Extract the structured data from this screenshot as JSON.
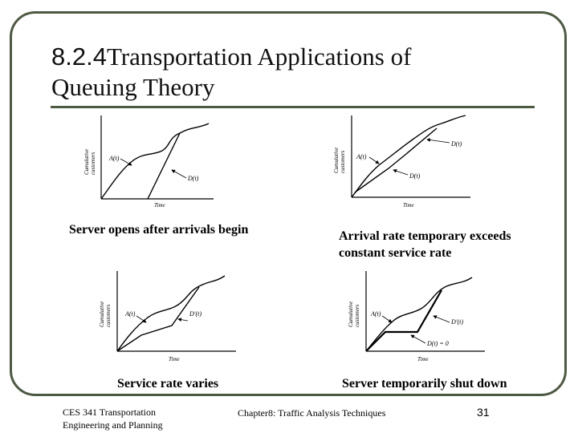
{
  "slide": {
    "title_number": "8.2.4",
    "title_text": "Transportation Applications of Queuing Theory",
    "page_number": "31",
    "footer_left": "CES 341 Transportation Engineering and Planning",
    "footer_center": "Chapter8: Traffic Analysis Techniques"
  },
  "figures": [
    {
      "caption": "Server opens after arrivals begin",
      "y_label_1": "Cumulative",
      "y_label_2": "customers",
      "x_label": "Time",
      "curve_label_a": "A(t)",
      "curve_label_d": "D(t)"
    },
    {
      "caption": "Arrival rate temporary exceeds constant service rate",
      "y_label_1": "Cumulative",
      "y_label_2": "customers",
      "x_label": "Time",
      "curve_label_a": "A(t)",
      "curve_label_d": "D(t)",
      "curve_label_d2": "D(t)"
    },
    {
      "caption": "Service rate varies",
      "y_label_1": "Cumulative",
      "y_label_2": "customers",
      "x_label": "Time",
      "curve_label_a": "A(t)",
      "curve_label_d": "D'(t)"
    },
    {
      "caption": "Server temporarily shut down",
      "y_label_1": "Cumulative",
      "y_label_2": "customers",
      "x_label": "Time",
      "curve_label_a": "A(t)",
      "curve_label_d": "D'(t)",
      "curve_label_d0": "D(t) = 0"
    }
  ]
}
